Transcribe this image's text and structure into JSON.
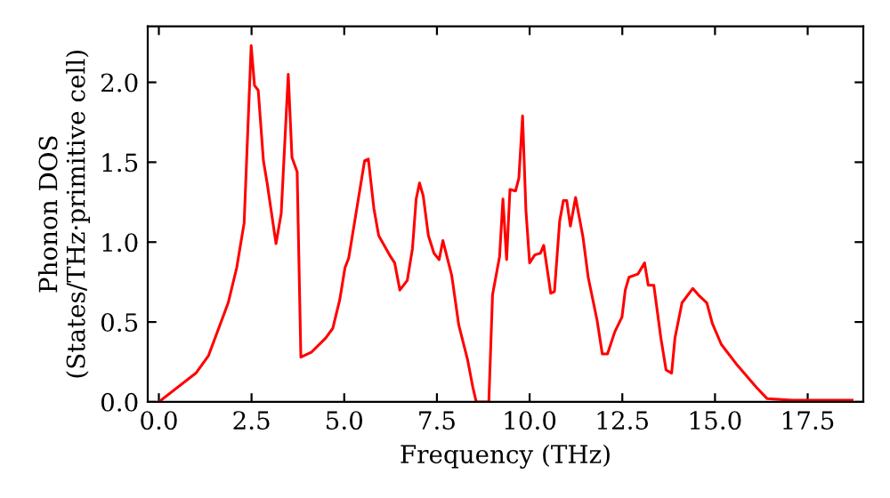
{
  "chart_data": {
    "type": "line",
    "xlabel": "Frequency (THz)",
    "ylabel": "Phonon DOS\n(States/THz·primitive cell)",
    "xlim": [
      -0.3,
      19
    ],
    "ylim": [
      0,
      2.35
    ],
    "xticks": [
      {
        "value": 0,
        "label": "0.0"
      },
      {
        "value": 2.5,
        "label": "2.5"
      },
      {
        "value": 5,
        "label": "5.0"
      },
      {
        "value": 7.5,
        "label": "7.5"
      },
      {
        "value": 10,
        "label": "10.0"
      },
      {
        "value": 12.5,
        "label": "12.5"
      },
      {
        "value": 15,
        "label": "15.0"
      },
      {
        "value": 17.5,
        "label": "17.5"
      }
    ],
    "yticks": [
      {
        "value": 0,
        "label": "0.0"
      },
      {
        "value": 0.5,
        "label": "0.5"
      },
      {
        "value": 1,
        "label": "1.0"
      },
      {
        "value": 1.5,
        "label": "1.5"
      },
      {
        "value": 2,
        "label": "2.0"
      }
    ],
    "grid": false,
    "marker": "none",
    "line_style": "solid",
    "series": [
      {
        "color": "#ff0000",
        "x": [
          0,
          1.0,
          1.34,
          1.87,
          2.1,
          2.3,
          2.49,
          2.58,
          2.68,
          2.82,
          2.92,
          3.16,
          3.3,
          3.49,
          3.59,
          3.73,
          3.83,
          4.11,
          4.5,
          4.69,
          4.88,
          5.02,
          5.12,
          5.36,
          5.55,
          5.65,
          5.8,
          5.93,
          6.22,
          6.36,
          6.5,
          6.7,
          6.84,
          6.94,
          7.03,
          7.13,
          7.27,
          7.42,
          7.56,
          7.66,
          7.9,
          8.09,
          8.33,
          8.47,
          8.56,
          8.9,
          9.0,
          9.19,
          9.28,
          9.38,
          9.47,
          9.62,
          9.71,
          9.81,
          9.9,
          10.0,
          10.14,
          10.29,
          10.38,
          10.57,
          10.67,
          10.81,
          10.91,
          11.0,
          11.1,
          11.24,
          11.44,
          11.58,
          11.82,
          11.96,
          12.1,
          12.3,
          12.49,
          12.58,
          12.68,
          12.92,
          13.1,
          13.2,
          13.35,
          13.54,
          13.68,
          13.83,
          13.92,
          14.11,
          14.4,
          14.55,
          14.78,
          14.93,
          15.17,
          15.6,
          16.12,
          16.41,
          17.08,
          18.7
        ],
        "values": [
          0,
          0.18,
          0.29,
          0.62,
          0.84,
          1.12,
          2.23,
          1.98,
          1.95,
          1.51,
          1.37,
          0.99,
          1.18,
          2.05,
          1.53,
          1.44,
          0.28,
          0.31,
          0.4,
          0.46,
          0.64,
          0.84,
          0.9,
          1.24,
          1.51,
          1.52,
          1.21,
          1.04,
          0.92,
          0.87,
          0.7,
          0.76,
          0.96,
          1.27,
          1.37,
          1.29,
          1.04,
          0.93,
          0.89,
          1.01,
          0.79,
          0.48,
          0.26,
          0.09,
          0,
          0,
          0.67,
          0.91,
          1.27,
          0.89,
          1.33,
          1.32,
          1.4,
          1.79,
          1.2,
          0.87,
          0.92,
          0.93,
          0.98,
          0.68,
          0.69,
          1.13,
          1.26,
          1.26,
          1.1,
          1.28,
          1.03,
          0.78,
          0.51,
          0.3,
          0.3,
          0.44,
          0.53,
          0.7,
          0.78,
          0.8,
          0.87,
          0.73,
          0.73,
          0.4,
          0.2,
          0.18,
          0.4,
          0.62,
          0.71,
          0.67,
          0.62,
          0.49,
          0.36,
          0.23,
          0.09,
          0.02,
          0.01,
          0.01
        ]
      }
    ]
  }
}
